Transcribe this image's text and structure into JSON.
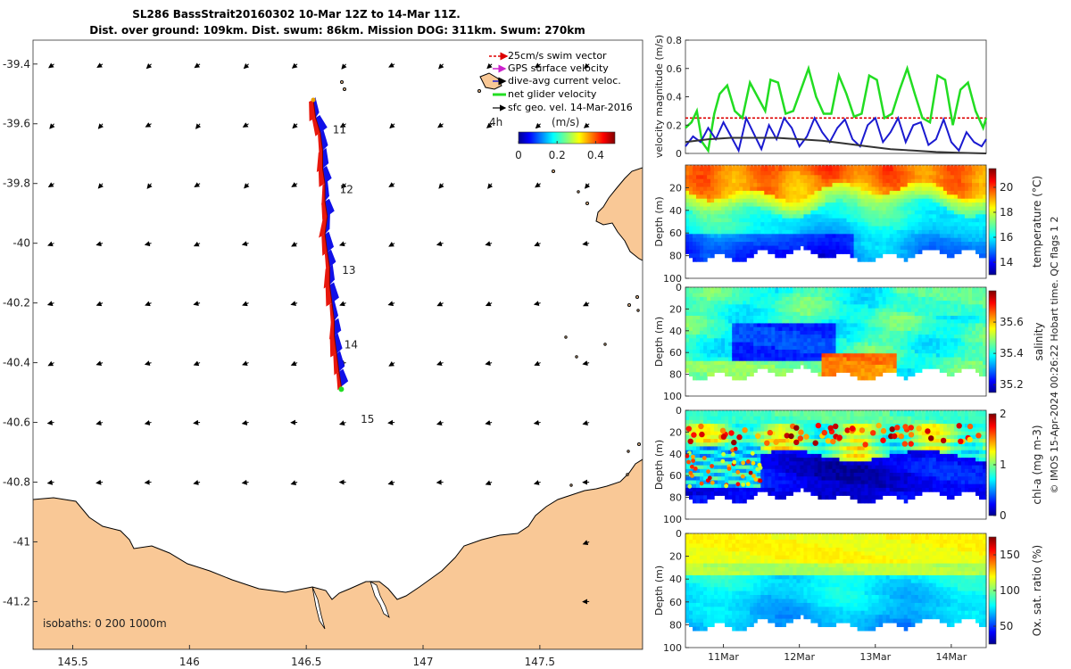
{
  "title": {
    "line1": "SL286 BassStrait20160302 10-Mar 12Z to 14-Mar 11Z.",
    "line2": "Dist. over ground: 109km. Dist. swum: 86km. Mission DOG: 311km. Swum: 270km"
  },
  "footer": "© IMOS 15-Apr-2024 00:26:22 Hobart time. QC flags 1  2",
  "colors": {
    "land": "#f9c896",
    "track_red": "#e8170c",
    "track_blue": "#1010e8",
    "net_green": "#22dd22",
    "swim_red": "#dd0000",
    "gps_magenta": "#cc22cc",
    "sfc_black": "#000000"
  },
  "chart_data": [
    {
      "id": "map",
      "type": "map",
      "x_ticks": [
        "145.5",
        "146",
        "146.5",
        "147",
        "147.5"
      ],
      "x_tick_values": [
        145.5,
        146.0,
        146.5,
        147.0,
        147.5
      ],
      "y_ticks": [
        "-39.4",
        "-39.6",
        "-39.8",
        "-40",
        "-40.2",
        "-40.4",
        "-40.6",
        "-40.8",
        "-41",
        "-41.2"
      ],
      "y_tick_values": [
        -39.4,
        -39.6,
        -39.8,
        -40.0,
        -40.2,
        -40.4,
        -40.6,
        -40.8,
        -41.0,
        -41.2
      ],
      "xlim": [
        145.33,
        147.94
      ],
      "ylim": [
        -41.36,
        -39.32
      ],
      "isobaths_label": "isobaths: 0   200  1000m",
      "day_labels": [
        {
          "label": "11",
          "lon": 146.59,
          "lat": -39.62
        },
        {
          "label": "12",
          "lon": 146.62,
          "lat": -39.82
        },
        {
          "label": "13",
          "lon": 146.63,
          "lat": -40.09
        },
        {
          "label": "14",
          "lon": 146.64,
          "lat": -40.34
        },
        {
          "label": "15",
          "lon": 146.71,
          "lat": -40.59
        }
      ],
      "hour_label": "4h",
      "track": [
        [
          146.53,
          -39.52
        ],
        [
          146.54,
          -39.58
        ],
        [
          146.56,
          -39.63
        ],
        [
          146.57,
          -39.69
        ],
        [
          146.57,
          -39.75
        ],
        [
          146.58,
          -39.8
        ],
        [
          146.58,
          -39.86
        ],
        [
          146.59,
          -39.91
        ],
        [
          146.58,
          -39.97
        ],
        [
          146.59,
          -40.03
        ],
        [
          146.6,
          -40.08
        ],
        [
          146.6,
          -40.14
        ],
        [
          146.61,
          -40.2
        ],
        [
          146.62,
          -40.26
        ],
        [
          146.62,
          -40.31
        ],
        [
          146.63,
          -40.37
        ],
        [
          146.64,
          -40.43
        ],
        [
          146.65,
          -40.48
        ]
      ],
      "legend": {
        "items": [
          "25cm/s swim vector",
          "GPS surface velocity",
          "dive-avg current veloc.",
          "net glider velocity",
          "sfc geo. vel. 14-Mar-2016"
        ],
        "colorbar_label": "(m/s)",
        "colorbar_ticks": [
          "0",
          "0.2",
          "0.4"
        ],
        "colorbar_tick_values": [
          0,
          0.2,
          0.4
        ],
        "colorbar_range": [
          0,
          0.5
        ]
      }
    },
    {
      "id": "velocity",
      "type": "line",
      "ylabel": "velocity magnitude (m/s)",
      "ylim": [
        0,
        0.8
      ],
      "y_ticks": [
        "0",
        "0.2",
        "0.4",
        "0.6",
        "0.8"
      ],
      "y_tick_values": [
        0,
        0.2,
        0.4,
        0.6,
        0.8
      ],
      "x_range_days": [
        10.5,
        14.46
      ],
      "series": [
        {
          "name": "swim speed (25cm/s)",
          "color": "#dd0000",
          "x": [
            10.5,
            14.46
          ],
          "values": [
            0.25,
            0.25
          ]
        },
        {
          "name": "net glider velocity",
          "color": "#22dd22",
          "x": [
            10.5,
            10.58,
            10.65,
            10.72,
            10.8,
            10.88,
            10.95,
            11.05,
            11.15,
            11.25,
            11.35,
            11.45,
            11.55,
            11.62,
            11.72,
            11.82,
            11.92,
            12.02,
            12.12,
            12.22,
            12.32,
            12.42,
            12.52,
            12.62,
            12.72,
            12.82,
            12.92,
            13.02,
            13.12,
            13.22,
            13.32,
            13.42,
            13.52,
            13.62,
            13.72,
            13.82,
            13.92,
            14.02,
            14.12,
            14.22,
            14.32,
            14.42,
            14.46
          ],
          "values": [
            0.18,
            0.22,
            0.3,
            0.08,
            0.02,
            0.28,
            0.42,
            0.48,
            0.3,
            0.25,
            0.5,
            0.4,
            0.3,
            0.52,
            0.5,
            0.28,
            0.3,
            0.45,
            0.6,
            0.4,
            0.28,
            0.28,
            0.55,
            0.42,
            0.26,
            0.28,
            0.55,
            0.52,
            0.25,
            0.28,
            0.45,
            0.6,
            0.42,
            0.25,
            0.22,
            0.55,
            0.52,
            0.2,
            0.45,
            0.5,
            0.3,
            0.18,
            0.25
          ]
        },
        {
          "name": "dive-avg current",
          "color": "#1a1ad0",
          "x": [
            10.5,
            10.6,
            10.7,
            10.8,
            10.9,
            11.0,
            11.1,
            11.2,
            11.3,
            11.4,
            11.5,
            11.6,
            11.7,
            11.8,
            11.9,
            12.0,
            12.1,
            12.2,
            12.3,
            12.4,
            12.5,
            12.6,
            12.7,
            12.8,
            12.9,
            13.0,
            13.1,
            13.2,
            13.3,
            13.4,
            13.5,
            13.6,
            13.7,
            13.8,
            13.9,
            14.0,
            14.1,
            14.2,
            14.3,
            14.4,
            14.46
          ],
          "values": [
            0.05,
            0.12,
            0.08,
            0.18,
            0.1,
            0.22,
            0.12,
            0.02,
            0.25,
            0.14,
            0.03,
            0.2,
            0.1,
            0.25,
            0.18,
            0.05,
            0.12,
            0.25,
            0.15,
            0.08,
            0.18,
            0.24,
            0.1,
            0.05,
            0.2,
            0.25,
            0.08,
            0.15,
            0.25,
            0.08,
            0.2,
            0.22,
            0.06,
            0.1,
            0.24,
            0.08,
            0.02,
            0.15,
            0.08,
            0.05,
            0.1
          ]
        },
        {
          "name": "sfc geostrophic",
          "color": "#333333",
          "x": [
            10.5,
            10.8,
            11.1,
            11.4,
            11.7,
            12.0,
            12.3,
            12.6,
            12.9,
            13.2,
            13.5,
            13.8,
            14.1,
            14.46
          ],
          "values": [
            0.08,
            0.1,
            0.11,
            0.11,
            0.11,
            0.1,
            0.09,
            0.07,
            0.05,
            0.03,
            0.02,
            0.01,
            0.005,
            0.0
          ]
        }
      ]
    },
    {
      "id": "temperature",
      "type": "heatmap",
      "ylabel": "Depth (m)",
      "cblabel": "temperature (°C)",
      "y_ticks": [
        "20",
        "40",
        "60",
        "80",
        "100"
      ],
      "y_tick_values": [
        20,
        40,
        60,
        80,
        100
      ],
      "ylim": [
        0,
        100
      ],
      "cb_range": [
        13,
        21.5
      ],
      "cb_ticks": [
        "14",
        "16",
        "18",
        "20"
      ],
      "cb_tick_values": [
        14,
        16,
        18,
        20
      ]
    },
    {
      "id": "salinity",
      "type": "heatmap",
      "ylabel": "Depth (m)",
      "cblabel": "salinity",
      "y_ticks": [
        "0",
        "20",
        "40",
        "60",
        "80",
        "100"
      ],
      "y_tick_values": [
        0,
        20,
        40,
        60,
        80,
        100
      ],
      "ylim": [
        0,
        100
      ],
      "cb_range": [
        35.15,
        35.8
      ],
      "cb_ticks": [
        "35.2",
        "35.4",
        "35.6"
      ],
      "cb_tick_values": [
        35.2,
        35.4,
        35.6
      ]
    },
    {
      "id": "chla",
      "type": "heatmap",
      "ylabel": "Depth (m)",
      "cblabel": "chl-a (mg m-3)",
      "y_ticks": [
        "0",
        "20",
        "40",
        "60",
        "80",
        "100"
      ],
      "y_tick_values": [
        0,
        20,
        40,
        60,
        80,
        100
      ],
      "ylim": [
        0,
        100
      ],
      "cb_range": [
        0,
        2
      ],
      "cb_ticks": [
        "0",
        "1",
        "2"
      ],
      "cb_tick_values": [
        0,
        1,
        2
      ]
    },
    {
      "id": "oxygen",
      "type": "heatmap",
      "ylabel": "Depth (m)",
      "cblabel": "Ox. sat. ratio (%)",
      "y_ticks": [
        "0",
        "20",
        "40",
        "60",
        "80",
        "100"
      ],
      "y_tick_values": [
        0,
        20,
        40,
        60,
        80,
        100
      ],
      "ylim": [
        0,
        100
      ],
      "cb_range": [
        25,
        175
      ],
      "cb_ticks": [
        "50",
        "100",
        "150"
      ],
      "cb_tick_values": [
        50,
        100,
        150
      ],
      "x_ticks": [
        "11Mar",
        "12Mar",
        "13Mar",
        "14Mar"
      ],
      "x_tick_values": [
        11,
        12,
        13,
        14
      ]
    }
  ]
}
